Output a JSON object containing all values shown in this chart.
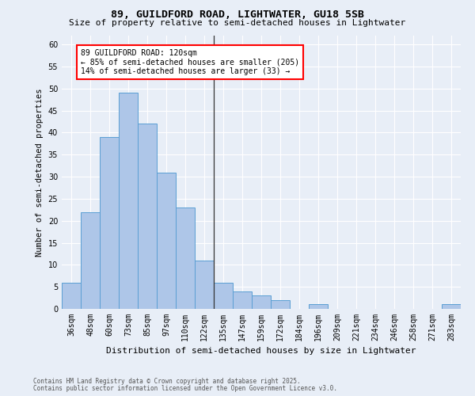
{
  "title": "89, GUILDFORD ROAD, LIGHTWATER, GU18 5SB",
  "subtitle": "Size of property relative to semi-detached houses in Lightwater",
  "xlabel": "Distribution of semi-detached houses by size in Lightwater",
  "ylabel": "Number of semi-detached properties",
  "footer1": "Contains HM Land Registry data © Crown copyright and database right 2025.",
  "footer2": "Contains public sector information licensed under the Open Government Licence v3.0.",
  "bins": [
    "36sqm",
    "48sqm",
    "60sqm",
    "73sqm",
    "85sqm",
    "97sqm",
    "110sqm",
    "122sqm",
    "135sqm",
    "147sqm",
    "159sqm",
    "172sqm",
    "184sqm",
    "196sqm",
    "209sqm",
    "221sqm",
    "234sqm",
    "246sqm",
    "258sqm",
    "271sqm",
    "283sqm"
  ],
  "values": [
    6,
    22,
    39,
    49,
    42,
    31,
    23,
    11,
    6,
    4,
    3,
    2,
    0,
    1,
    0,
    0,
    0,
    0,
    0,
    0,
    1
  ],
  "bar_color": "#aec6e8",
  "bar_edge_color": "#5a9fd4",
  "bg_color": "#e8eef7",
  "grid_color": "#ffffff",
  "annotation_title": "89 GUILDFORD ROAD: 120sqm",
  "annotation_line1": "← 85% of semi-detached houses are smaller (205)",
  "annotation_line2": "14% of semi-detached houses are larger (33) →",
  "vline_index": 7.5,
  "ylim": [
    0,
    62
  ],
  "yticks": [
    0,
    5,
    10,
    15,
    20,
    25,
    30,
    35,
    40,
    45,
    50,
    55,
    60
  ],
  "title_fontsize": 9.5,
  "subtitle_fontsize": 8,
  "ylabel_fontsize": 7.5,
  "xlabel_fontsize": 8,
  "tick_fontsize": 7,
  "annotation_fontsize": 7,
  "footer_fontsize": 5.5
}
